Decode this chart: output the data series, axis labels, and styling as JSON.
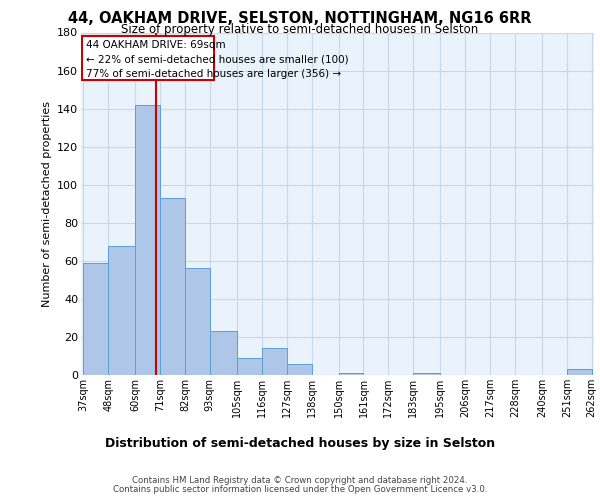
{
  "title_line1": "44, OAKHAM DRIVE, SELSTON, NOTTINGHAM, NG16 6RR",
  "title_line2": "Size of property relative to semi-detached houses in Selston",
  "xlabel": "Distribution of semi-detached houses by size in Selston",
  "ylabel": "Number of semi-detached properties",
  "footer_line1": "Contains HM Land Registry data © Crown copyright and database right 2024.",
  "footer_line2": "Contains public sector information licensed under the Open Government Licence v3.0.",
  "annotation_line1": "44 OAKHAM DRIVE: 69sqm",
  "annotation_line2": "← 22% of semi-detached houses are smaller (100)",
  "annotation_line3": "77% of semi-detached houses are larger (356) →",
  "property_size": 69,
  "bin_edges": [
    37,
    48,
    60,
    71,
    82,
    93,
    105,
    116,
    127,
    138,
    150,
    161,
    172,
    183,
    195,
    206,
    217,
    228,
    240,
    251,
    262
  ],
  "bin_labels": [
    "37sqm",
    "48sqm",
    "60sqm",
    "71sqm",
    "82sqm",
    "93sqm",
    "105sqm",
    "116sqm",
    "127sqm",
    "138sqm",
    "150sqm",
    "161sqm",
    "172sqm",
    "183sqm",
    "195sqm",
    "206sqm",
    "217sqm",
    "228sqm",
    "240sqm",
    "251sqm",
    "262sqm"
  ],
  "bar_heights": [
    59,
    68,
    142,
    93,
    56,
    23,
    9,
    14,
    6,
    0,
    1,
    0,
    0,
    1,
    0,
    0,
    0,
    0,
    0,
    3
  ],
  "bar_color": "#aec6e8",
  "bar_edge_color": "#5a9fd4",
  "grid_color": "#c8d8e8",
  "bg_color": "#eaf3fb",
  "vline_color": "#cc0000",
  "vline_x": 69,
  "annotation_box_color": "#cc0000",
  "ylim": [
    0,
    180
  ],
  "yticks": [
    0,
    20,
    40,
    60,
    80,
    100,
    120,
    140,
    160,
    180
  ]
}
